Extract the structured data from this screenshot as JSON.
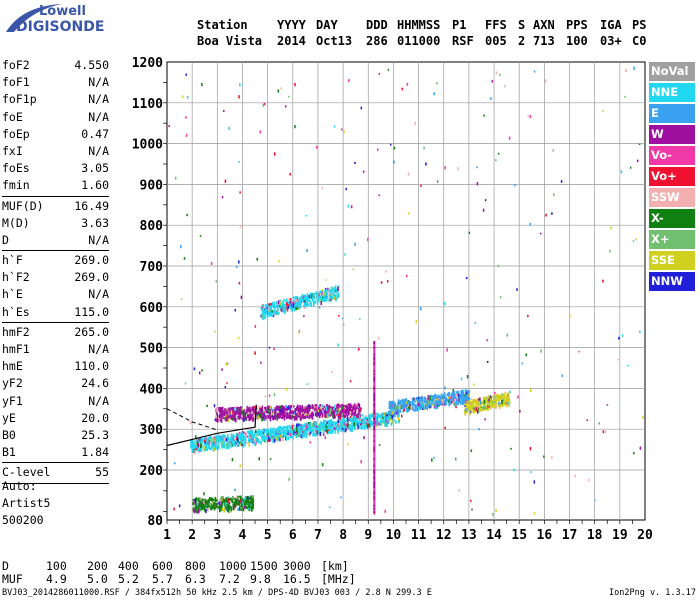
{
  "logo": {
    "top": "Lowell",
    "bottom": "DIGISONDE"
  },
  "header": {
    "line1": [
      "Station",
      "YYYY",
      "DAY",
      "DDD",
      "HHMMSS",
      "P1",
      "FFS",
      "S",
      "AXN",
      "PPS",
      "IGA",
      "PS"
    ],
    "line2": [
      "Boa Vista",
      "2014",
      "Oct13",
      "286",
      "011000",
      "RSF",
      "005",
      "2",
      "713",
      "100",
      "03+",
      "C0"
    ]
  },
  "params": [
    {
      "group": [
        {
          "k": "foF2",
          "v": "4.550"
        },
        {
          "k": "foF1",
          "v": "N/A"
        },
        {
          "k": "foF1p",
          "v": "N/A"
        },
        {
          "k": "foE",
          "v": "N/A"
        },
        {
          "k": "foEp",
          "v": "0.47"
        },
        {
          "k": "fxI",
          "v": "N/A"
        },
        {
          "k": "foEs",
          "v": "3.05"
        },
        {
          "k": "fmin",
          "v": "1.60"
        }
      ]
    },
    {
      "group": [
        {
          "k": "MUF(D)",
          "v": "16.49"
        },
        {
          "k": "M(D)",
          "v": "3.63"
        },
        {
          "k": "D",
          "v": "N/A"
        }
      ]
    },
    {
      "group": [
        {
          "k": "h`F",
          "v": "269.0"
        },
        {
          "k": "h`F2",
          "v": "269.0"
        },
        {
          "k": "h`E",
          "v": "N/A"
        },
        {
          "k": "h`Es",
          "v": "115.0"
        }
      ]
    },
    {
      "group": [
        {
          "k": "hmF2",
          "v": "265.0"
        },
        {
          "k": "hmF1",
          "v": "N/A"
        },
        {
          "k": "hmE",
          "v": "110.0"
        },
        {
          "k": "yF2",
          "v": "24.6"
        },
        {
          "k": "yF1",
          "v": "N/A"
        },
        {
          "k": "yE",
          "v": "20.0"
        },
        {
          "k": "B0",
          "v": "25.3"
        },
        {
          "k": "B1",
          "v": "1.84"
        }
      ]
    },
    {
      "group": [
        {
          "k": "C-level",
          "v": "55"
        }
      ]
    }
  ],
  "auto": [
    "Auto:",
    "Artist5",
    "500200"
  ],
  "legend": [
    {
      "label": "NoVal",
      "color": "#a0a0a0"
    },
    {
      "label": "NNE",
      "color": "#22d8f0"
    },
    {
      "label": "E",
      "color": "#3aa0f0"
    },
    {
      "label": "W",
      "color": "#a010a0"
    },
    {
      "label": "Vo-",
      "color": "#f038a8"
    },
    {
      "label": "Vo+",
      "color": "#f01030"
    },
    {
      "label": "SSW",
      "color": "#f4b0b0"
    },
    {
      "label": "X-",
      "color": "#108010"
    },
    {
      "label": "X+",
      "color": "#70c070"
    },
    {
      "label": "SSE",
      "color": "#d0d020"
    },
    {
      "label": "NNW",
      "color": "#2020d8"
    }
  ],
  "muf_table": {
    "row1_label": "D",
    "row1": [
      "100",
      "200",
      "400",
      "600",
      "800",
      "1000",
      "1500",
      "3000",
      "[km]"
    ],
    "row2_label": "MUF",
    "row2": [
      "4.9",
      "5.0",
      "5.2",
      "5.7",
      "6.3",
      "7.2",
      "9.8",
      "16.5",
      "[MHz]"
    ]
  },
  "footer": "BVJ03_2014286011000.RSF / 384fx512h 50 kHz 2.5 km / DPS-4D BVJ03 003 / 2.8 N 299.3 E",
  "version": "Ion2Png v. 1.3.17",
  "chart_data": {
    "type": "scatter",
    "title": "",
    "xlabel": "",
    "ylabel": "",
    "xlim": [
      1,
      20
    ],
    "ylim": [
      80,
      1200
    ],
    "x_ticks": [
      "1",
      "2",
      "3",
      "4",
      "5",
      "6",
      "7",
      "8",
      "9",
      "10",
      "11",
      "12",
      "13",
      "14",
      "15",
      "16",
      "17",
      "18",
      "19",
      "20"
    ],
    "y_ticks": [
      "80",
      "200",
      "300",
      "400",
      "500",
      "600",
      "700",
      "800",
      "900",
      "1000",
      "1100",
      "1200"
    ],
    "grid": true,
    "legend_position": "right",
    "trace_bands": [
      {
        "name": "F-trace lower",
        "color": "#22d8f0",
        "x0": 1.9,
        "x1": 10.2,
        "h0": 262,
        "h1": 335
      },
      {
        "name": "F-trace upper",
        "color": "#a010a0",
        "x0": 2.9,
        "x1": 8.7,
        "h0": 340,
        "h1": 350
      },
      {
        "name": "F-trace upper2",
        "color": "#3aa0f0",
        "x0": 9.8,
        "x1": 13.0,
        "h0": 355,
        "h1": 385
      },
      {
        "name": "F-trace far",
        "color": "#d0d020",
        "x0": 12.8,
        "x1": 14.6,
        "h0": 355,
        "h1": 380
      },
      {
        "name": "Es trace",
        "color": "#108010",
        "x0": 2.0,
        "x1": 4.4,
        "h0": 120,
        "h1": 125
      },
      {
        "name": "oblique echoes",
        "color": "#22d8f0",
        "x0": 4.7,
        "x1": 7.8,
        "h0": 590,
        "h1": 640
      }
    ],
    "model_curve": [
      [
        1.0,
        260
      ],
      [
        2.0,
        275
      ],
      [
        3.0,
        290
      ],
      [
        4.0,
        300
      ],
      [
        4.5,
        305
      ],
      [
        4.55,
        360
      ]
    ],
    "model_curve2": [
      [
        1.0,
        350
      ],
      [
        2.0,
        318
      ],
      [
        3.0,
        298
      ]
    ]
  }
}
